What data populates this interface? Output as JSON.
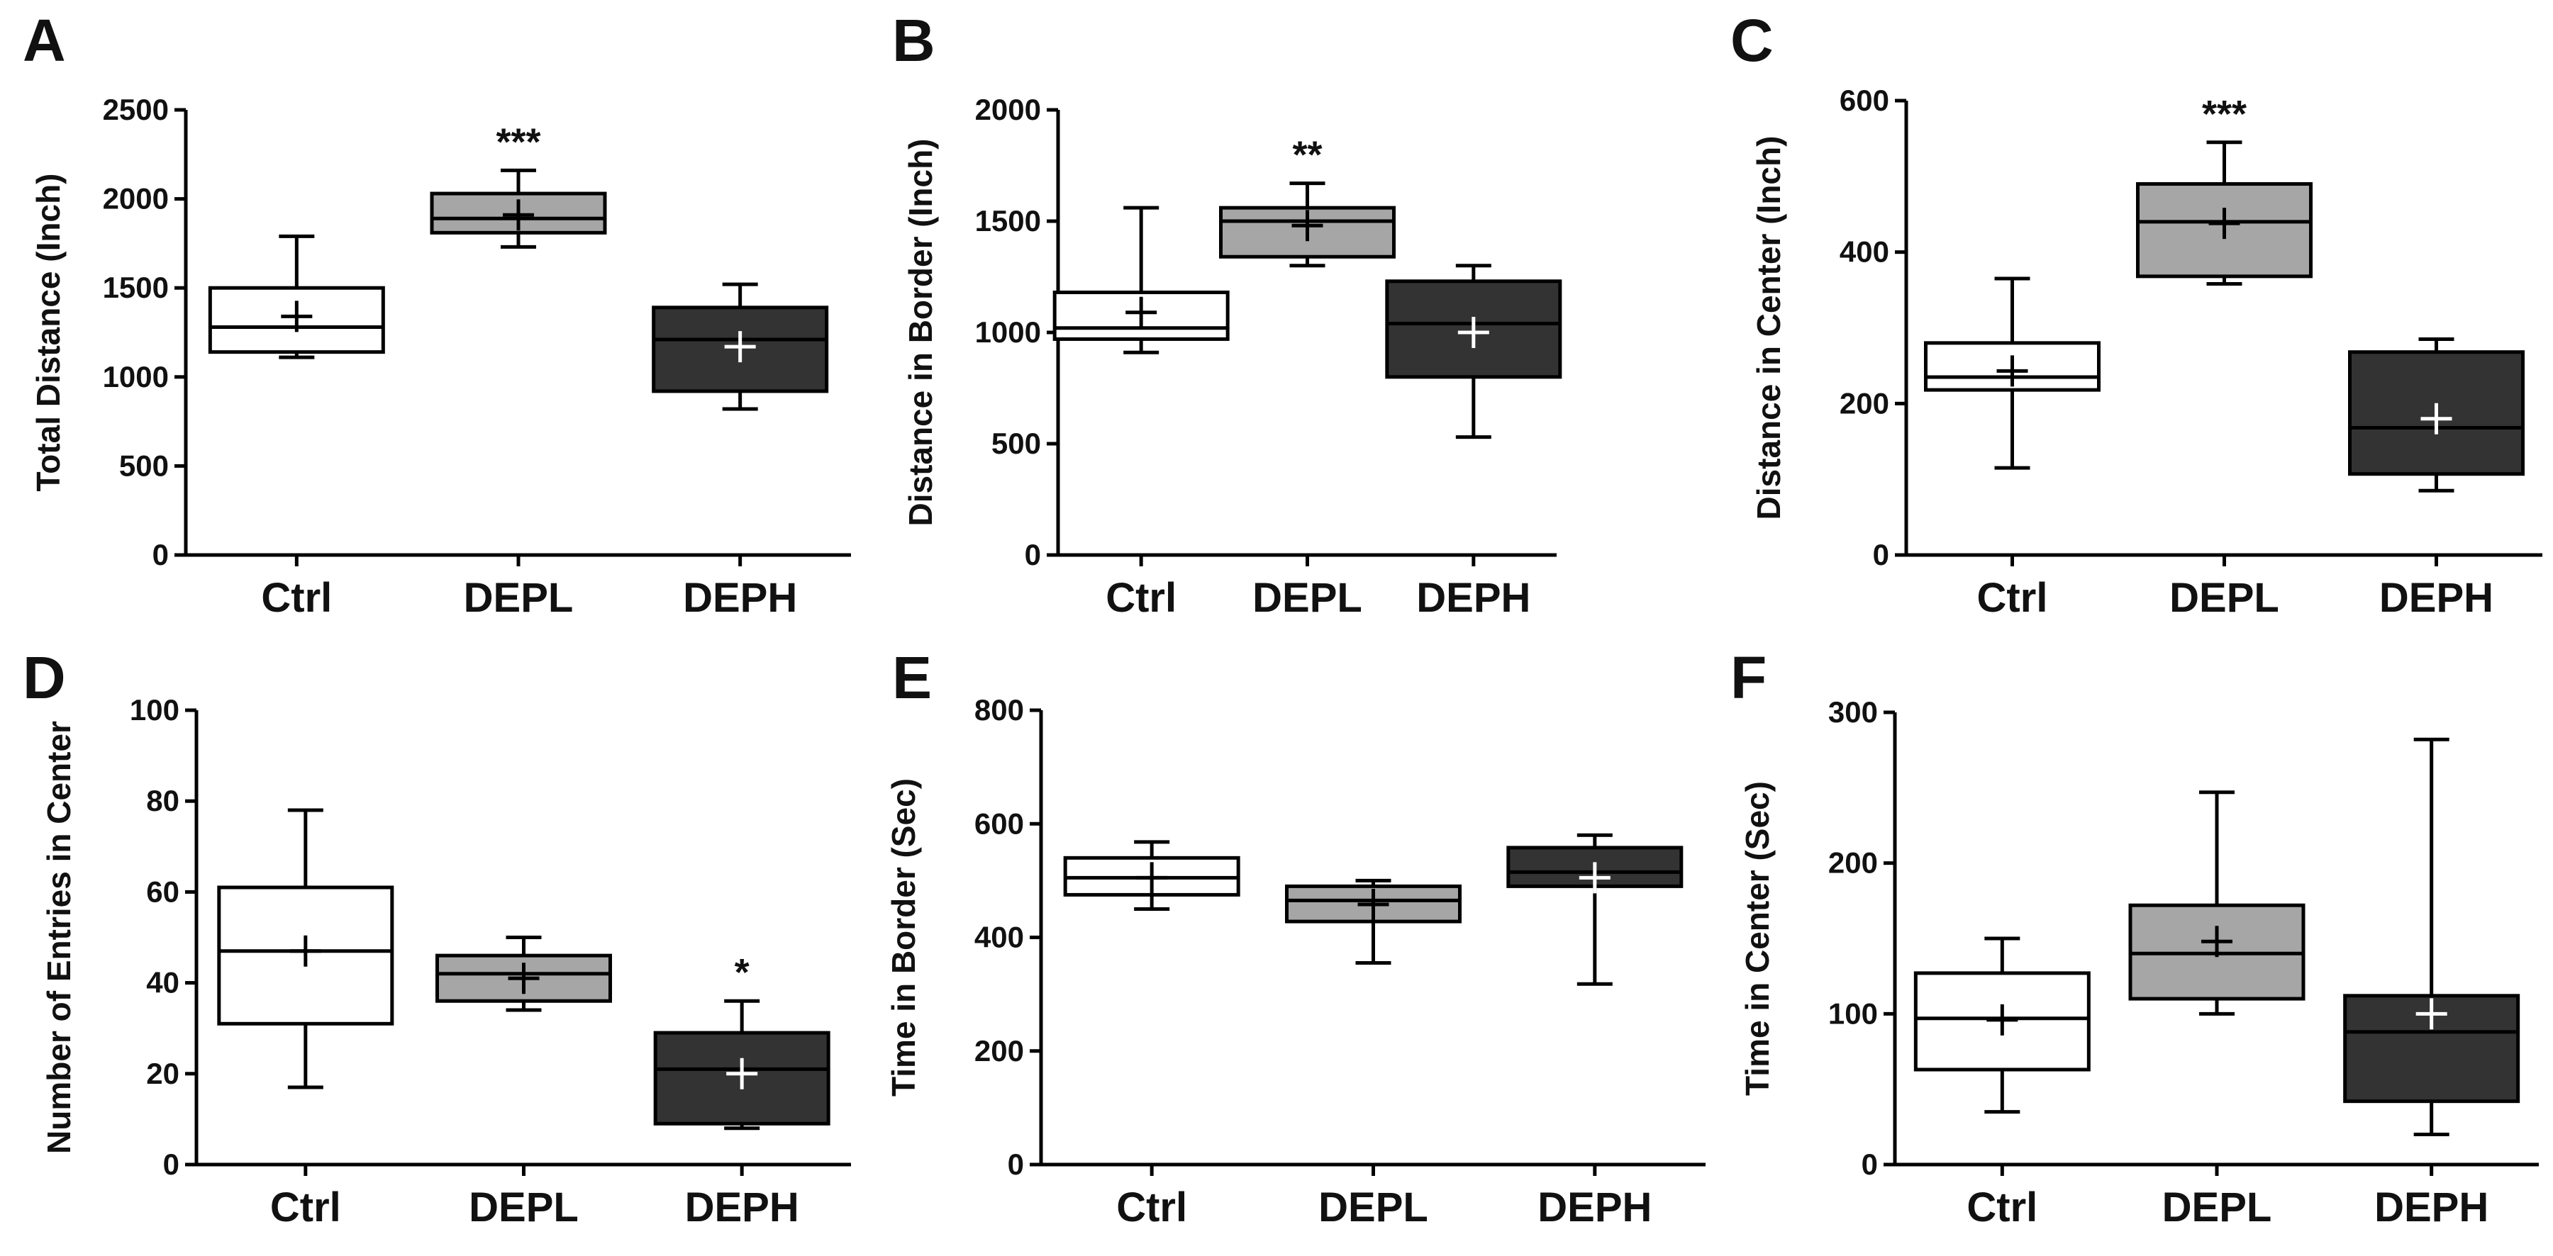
{
  "colors": {
    "Ctrl": "#ffffff",
    "DEPL": "#a6a6a6",
    "DEPH": "#333333"
  },
  "chart_data": [
    {
      "panel": "A",
      "type": "box",
      "ylabel": "Total Distance (Inch)",
      "ylim": [
        0,
        2500
      ],
      "yticks": [
        0,
        500,
        1000,
        1500,
        2000,
        2500
      ],
      "categories": [
        "Ctrl",
        "DEPL",
        "DEPH"
      ],
      "boxes": [
        {
          "group": "Ctrl",
          "min": 1110,
          "q1": 1140,
          "median": 1280,
          "q3": 1500,
          "max": 1790,
          "mean": 1340,
          "sig": ""
        },
        {
          "group": "DEPL",
          "min": 1730,
          "q1": 1810,
          "median": 1890,
          "q3": 2030,
          "max": 2160,
          "mean": 1910,
          "sig": "***"
        },
        {
          "group": "DEPH",
          "min": 820,
          "q1": 920,
          "median": 1210,
          "q3": 1390,
          "max": 1520,
          "mean": 1170,
          "sig": ""
        }
      ]
    },
    {
      "panel": "B",
      "type": "box",
      "ylabel": "Distance in Border (Inch)",
      "ylim": [
        0,
        2000
      ],
      "yticks": [
        0,
        500,
        1000,
        1500,
        2000
      ],
      "categories": [
        "Ctrl",
        "DEPL",
        "DEPH"
      ],
      "boxes": [
        {
          "group": "Ctrl",
          "min": 910,
          "q1": 970,
          "median": 1020,
          "q3": 1180,
          "max": 1560,
          "mean": 1090,
          "sig": ""
        },
        {
          "group": "DEPL",
          "min": 1300,
          "q1": 1340,
          "median": 1500,
          "q3": 1560,
          "max": 1670,
          "mean": 1480,
          "sig": "**"
        },
        {
          "group": "DEPH",
          "min": 530,
          "q1": 800,
          "median": 1040,
          "q3": 1230,
          "max": 1300,
          "mean": 1000,
          "sig": ""
        }
      ]
    },
    {
      "panel": "C",
      "type": "box",
      "ylabel": "Distance in Center (Inch)",
      "ylim": [
        0,
        600
      ],
      "yticks": [
        0,
        200,
        400,
        600
      ],
      "categories": [
        "Ctrl",
        "DEPL",
        "DEPH"
      ],
      "boxes": [
        {
          "group": "Ctrl",
          "min": 115,
          "q1": 218,
          "median": 235,
          "q3": 280,
          "max": 365,
          "mean": 243,
          "sig": ""
        },
        {
          "group": "DEPL",
          "min": 358,
          "q1": 368,
          "median": 440,
          "q3": 490,
          "max": 545,
          "mean": 438,
          "sig": "***"
        },
        {
          "group": "DEPH",
          "min": 85,
          "q1": 107,
          "median": 168,
          "q3": 268,
          "max": 285,
          "mean": 180,
          "sig": ""
        }
      ]
    },
    {
      "panel": "D",
      "type": "box",
      "ylabel": "Number of Entries in Center",
      "ylim": [
        0,
        100
      ],
      "yticks": [
        0,
        20,
        40,
        60,
        80,
        100
      ],
      "categories": [
        "Ctrl",
        "DEPL",
        "DEPH"
      ],
      "boxes": [
        {
          "group": "Ctrl",
          "min": 17,
          "q1": 31,
          "median": 47,
          "q3": 61,
          "max": 78,
          "mean": 47,
          "sig": ""
        },
        {
          "group": "DEPL",
          "min": 34,
          "q1": 36,
          "median": 42,
          "q3": 46,
          "max": 50,
          "mean": 41,
          "sig": ""
        },
        {
          "group": "DEPH",
          "min": 8,
          "q1": 9,
          "median": 21,
          "q3": 29,
          "max": 36,
          "mean": 20,
          "sig": "*"
        }
      ]
    },
    {
      "panel": "E",
      "type": "box",
      "ylabel": "Time in Border (Sec)",
      "ylim": [
        0,
        800
      ],
      "yticks": [
        0,
        200,
        400,
        600,
        800
      ],
      "categories": [
        "Ctrl",
        "DEPL",
        "DEPH"
      ],
      "boxes": [
        {
          "group": "Ctrl",
          "min": 450,
          "q1": 475,
          "median": 505,
          "q3": 540,
          "max": 568,
          "mean": 505,
          "sig": ""
        },
        {
          "group": "DEPL",
          "min": 355,
          "q1": 428,
          "median": 465,
          "q3": 490,
          "max": 500,
          "mean": 458,
          "sig": ""
        },
        {
          "group": "DEPH",
          "min": 318,
          "q1": 490,
          "median": 515,
          "q3": 558,
          "max": 580,
          "mean": 505,
          "sig": ""
        }
      ]
    },
    {
      "panel": "F",
      "type": "box",
      "ylabel": "Time in Center (Sec)",
      "ylim": [
        0,
        300
      ],
      "yticks": [
        0,
        100,
        200,
        300
      ],
      "categories": [
        "Ctrl",
        "DEPL",
        "DEPH"
      ],
      "boxes": [
        {
          "group": "Ctrl",
          "min": 35,
          "q1": 63,
          "median": 97,
          "q3": 127,
          "max": 150,
          "mean": 96,
          "sig": ""
        },
        {
          "group": "DEPL",
          "min": 100,
          "q1": 110,
          "median": 140,
          "q3": 172,
          "max": 247,
          "mean": 148,
          "sig": ""
        },
        {
          "group": "DEPH",
          "min": 20,
          "q1": 42,
          "median": 88,
          "q3": 112,
          "max": 282,
          "mean": 100,
          "sig": ""
        }
      ]
    }
  ]
}
